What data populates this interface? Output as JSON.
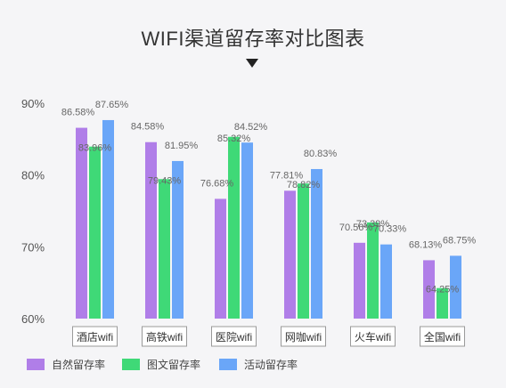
{
  "chart_data": {
    "type": "bar",
    "title": "WIFI渠道留存率对比图表",
    "categories": [
      "酒店wifi",
      "高铁wifi",
      "医院wifi",
      "网咖wifi",
      "火车wifi",
      "全国wifi"
    ],
    "series": [
      {
        "name": "自然留存率",
        "values": [
          86.58,
          84.58,
          76.68,
          77.81,
          70.56,
          68.13
        ],
        "labels": [
          "86.58%",
          "84.58%",
          "76.68%",
          "77.81%",
          "70.56%",
          "68.13%"
        ],
        "color": "#b07ee8"
      },
      {
        "name": "图文留存率",
        "values": [
          83.96,
          79.43,
          85.32,
          78.82,
          73.39,
          64.25
        ],
        "labels": [
          "83.96%",
          "79.43%",
          "85.32%",
          "78.82%",
          "73.39%",
          "64.25%"
        ],
        "color": "#3fd977"
      },
      {
        "name": "活动留存率",
        "values": [
          87.65,
          81.95,
          84.52,
          80.83,
          70.33,
          68.75
        ],
        "labels": [
          "87.65%",
          "81.95%",
          "84.52%",
          "80.83%",
          "70.33%",
          "68.75%"
        ],
        "color": "#6aa6f8"
      }
    ],
    "yticks": [
      "60%",
      "70%",
      "80%",
      "90%"
    ],
    "ytick_values": [
      60,
      70,
      80,
      90
    ],
    "ylim": [
      60,
      90
    ],
    "grid": false,
    "legend_position": "bottom-left"
  }
}
